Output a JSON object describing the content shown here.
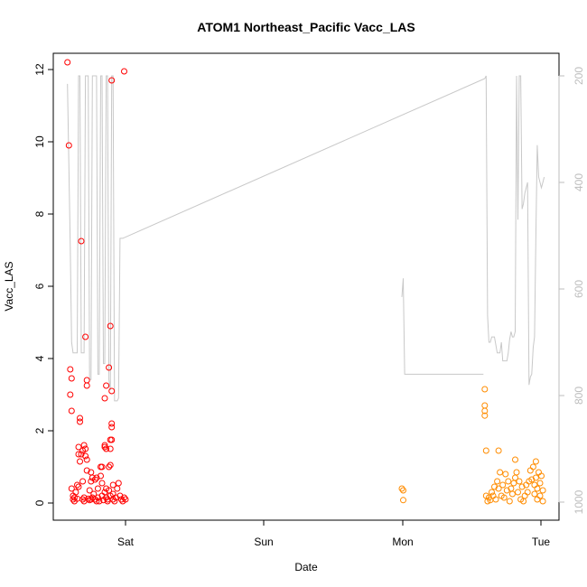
{
  "chart_data": {
    "type": "scatter",
    "title": "ATOM1 Northeast_Pacific Vacc_LAS",
    "xlabel": "Date",
    "ylabel": "Vacc_LAS",
    "x_ticks": [
      "Sat",
      "Sun",
      "Mon",
      "Tue"
    ],
    "y_ticks": [
      "0",
      "2",
      "4",
      "6",
      "8",
      "10",
      "12"
    ],
    "y_right_ticks": [
      "200",
      "400",
      "600",
      "800",
      "1000"
    ],
    "ylim": [
      0,
      12.3
    ],
    "y_right_lim": [
      1000,
      200
    ],
    "y_right_reversed": true,
    "grid": false,
    "colors": {
      "series1": "#ff0000",
      "series2": "#ff8c00",
      "secondary_line": "#c8c8c8"
    },
    "series": [
      {
        "points": [
          [
            -0.42,
            12.2
          ],
          [
            -0.41,
            9.9
          ],
          [
            -0.4,
            3.7
          ],
          [
            -0.4,
            3.0
          ],
          [
            -0.39,
            3.45
          ],
          [
            -0.39,
            2.55
          ],
          [
            -0.39,
            0.4
          ],
          [
            -0.38,
            0.2
          ],
          [
            -0.38,
            0.1
          ],
          [
            -0.37,
            0.15
          ],
          [
            -0.37,
            0.05
          ],
          [
            -0.36,
            0.3
          ],
          [
            -0.35,
            0.12
          ],
          [
            -0.35,
            0.5
          ],
          [
            -0.34,
            1.35
          ],
          [
            -0.34,
            1.55
          ],
          [
            -0.34,
            0.45
          ],
          [
            -0.33,
            2.35
          ],
          [
            -0.33,
            1.15
          ],
          [
            -0.33,
            2.25
          ],
          [
            -0.32,
            7.25
          ],
          [
            -0.32,
            1.35
          ],
          [
            -0.31,
            1.45
          ],
          [
            -0.31,
            0.6
          ],
          [
            -0.31,
            0.1
          ],
          [
            -0.3,
            0.15
          ],
          [
            -0.3,
            0.05
          ],
          [
            -0.3,
            1.6
          ],
          [
            -0.29,
            4.6
          ],
          [
            -0.29,
            1.5
          ],
          [
            -0.29,
            1.3
          ],
          [
            -0.28,
            1.2
          ],
          [
            -0.28,
            3.4
          ],
          [
            -0.28,
            3.25
          ],
          [
            -0.28,
            0.9
          ],
          [
            -0.27,
            0.12
          ],
          [
            -0.26,
            0.08
          ],
          [
            -0.26,
            0.35
          ],
          [
            -0.25,
            0.85
          ],
          [
            -0.25,
            0.1
          ],
          [
            -0.25,
            0.6
          ],
          [
            -0.24,
            0.7
          ],
          [
            -0.24,
            0.15
          ],
          [
            -0.23,
            0.25
          ],
          [
            -0.22,
            0.65
          ],
          [
            -0.22,
            0.1
          ],
          [
            -0.21,
            0.7
          ],
          [
            -0.21,
            0.05
          ],
          [
            -0.2,
            0.4
          ],
          [
            -0.2,
            0.15
          ],
          [
            -0.19,
            0.05
          ],
          [
            -0.18,
            1.0
          ],
          [
            -0.18,
            0.75
          ],
          [
            -0.17,
            0.55
          ],
          [
            -0.17,
            1.0
          ],
          [
            -0.17,
            0.2
          ],
          [
            -0.16,
            0.08
          ],
          [
            -0.15,
            2.9
          ],
          [
            -0.15,
            1.55
          ],
          [
            -0.15,
            1.6
          ],
          [
            -0.15,
            0.3
          ],
          [
            -0.14,
            1.5
          ],
          [
            -0.14,
            3.25
          ],
          [
            -0.14,
            0.4
          ],
          [
            -0.14,
            0.15
          ],
          [
            -0.13,
            0.1
          ],
          [
            -0.13,
            0.05
          ],
          [
            -0.12,
            1.0
          ],
          [
            -0.12,
            0.35
          ],
          [
            -0.12,
            3.75
          ],
          [
            -0.11,
            4.9
          ],
          [
            -0.11,
            1.75
          ],
          [
            -0.11,
            1.5
          ],
          [
            -0.11,
            1.05
          ],
          [
            -0.11,
            0.2
          ],
          [
            -0.1,
            11.7
          ],
          [
            -0.1,
            2.2
          ],
          [
            -0.1,
            2.1
          ],
          [
            -0.1,
            1.75
          ],
          [
            -0.1,
            3.1
          ],
          [
            -0.09,
            0.5
          ],
          [
            -0.09,
            0.25
          ],
          [
            -0.09,
            0.1
          ],
          [
            -0.08,
            0.05
          ],
          [
            -0.07,
            0.15
          ],
          [
            -0.06,
            0.4
          ],
          [
            -0.05,
            0.55
          ],
          [
            -0.04,
            0.2
          ],
          [
            -0.03,
            0.1
          ],
          [
            -0.02,
            0.05
          ],
          [
            -0.01,
            11.95
          ],
          [
            -0.01,
            0.15
          ],
          [
            0.0,
            0.1
          ]
        ]
      },
      {
        "points": [
          [
            2.0,
            0.4
          ],
          [
            2.01,
            0.35
          ],
          [
            2.01,
            0.08
          ],
          [
            2.6,
            3.15
          ],
          [
            2.6,
            2.7
          ],
          [
            2.6,
            2.55
          ],
          [
            2.6,
            2.42
          ],
          [
            2.61,
            1.45
          ],
          [
            2.61,
            0.2
          ],
          [
            2.62,
            0.05
          ],
          [
            2.63,
            0.15
          ],
          [
            2.64,
            0.08
          ],
          [
            2.65,
            0.3
          ],
          [
            2.66,
            0.2
          ],
          [
            2.67,
            0.45
          ],
          [
            2.68,
            0.1
          ],
          [
            2.69,
            0.6
          ],
          [
            2.7,
            1.45
          ],
          [
            2.7,
            0.4
          ],
          [
            2.71,
            0.85
          ],
          [
            2.72,
            0.2
          ],
          [
            2.73,
            0.5
          ],
          [
            2.74,
            0.15
          ],
          [
            2.75,
            0.8
          ],
          [
            2.76,
            0.35
          ],
          [
            2.77,
            0.6
          ],
          [
            2.78,
            0.05
          ],
          [
            2.79,
            0.4
          ],
          [
            2.8,
            0.25
          ],
          [
            2.81,
            0.55
          ],
          [
            2.82,
            0.7
          ],
          [
            2.82,
            1.2
          ],
          [
            2.83,
            0.85
          ],
          [
            2.84,
            0.3
          ],
          [
            2.85,
            0.6
          ],
          [
            2.86,
            0.1
          ],
          [
            2.87,
            0.45
          ],
          [
            2.88,
            0.05
          ],
          [
            2.89,
            0.2
          ],
          [
            2.9,
            0.5
          ],
          [
            2.91,
            0.3
          ],
          [
            2.92,
            0.6
          ],
          [
            2.93,
            0.9
          ],
          [
            2.94,
            0.65
          ],
          [
            2.95,
            1.0
          ],
          [
            2.96,
            0.5
          ],
          [
            2.96,
            0.25
          ],
          [
            2.97,
            1.15
          ],
          [
            2.97,
            0.7
          ],
          [
            2.98,
            0.4
          ],
          [
            2.98,
            0.1
          ],
          [
            2.99,
            0.85
          ],
          [
            3.0,
            0.55
          ],
          [
            3.0,
            0.2
          ],
          [
            3.01,
            0.75
          ],
          [
            3.02,
            0.35
          ],
          [
            3.02,
            0.05
          ]
        ]
      }
    ],
    "secondary_line": [
      [
        -0.42,
        215
      ],
      [
        -0.4,
        520
      ],
      [
        -0.39,
        700
      ],
      [
        -0.38,
        720
      ],
      [
        -0.35,
        720
      ],
      [
        -0.34,
        200
      ],
      [
        -0.33,
        200
      ],
      [
        -0.32,
        720
      ],
      [
        -0.31,
        720
      ],
      [
        -0.3,
        720
      ],
      [
        -0.29,
        200
      ],
      [
        -0.28,
        200
      ],
      [
        -0.27,
        200
      ],
      [
        -0.26,
        770
      ],
      [
        -0.25,
        770
      ],
      [
        -0.24,
        200
      ],
      [
        -0.23,
        200
      ],
      [
        -0.22,
        200
      ],
      [
        -0.21,
        200
      ],
      [
        -0.2,
        760
      ],
      [
        -0.19,
        760
      ],
      [
        -0.18,
        200
      ],
      [
        -0.17,
        200
      ],
      [
        -0.16,
        740
      ],
      [
        -0.15,
        740
      ],
      [
        -0.14,
        200
      ],
      [
        -0.13,
        200
      ],
      [
        -0.12,
        770
      ],
      [
        -0.11,
        790
      ],
      [
        -0.1,
        200
      ],
      [
        -0.09,
        200
      ],
      [
        -0.08,
        810
      ],
      [
        -0.06,
        810
      ],
      [
        -0.05,
        805
      ],
      [
        -0.04,
        505
      ],
      [
        -0.02,
        505
      ],
      [
        2.6,
        205
      ],
      [
        2.61,
        200
      ],
      [
        2.62,
        650
      ],
      [
        2.63,
        700
      ],
      [
        2.64,
        700
      ],
      [
        2.65,
        690
      ],
      [
        2.67,
        690
      ],
      [
        2.69,
        720
      ],
      [
        2.71,
        720
      ],
      [
        2.72,
        700
      ],
      [
        2.73,
        735
      ],
      [
        2.74,
        735
      ],
      [
        2.76,
        735
      ],
      [
        2.77,
        720
      ],
      [
        2.78,
        695
      ],
      [
        2.79,
        680
      ],
      [
        2.8,
        690
      ],
      [
        2.81,
        690
      ],
      [
        2.82,
        680
      ],
      [
        2.83,
        200
      ],
      [
        2.84,
        470
      ],
      [
        2.85,
        200
      ],
      [
        2.86,
        200
      ],
      [
        2.87,
        450
      ],
      [
        2.88,
        440
      ],
      [
        2.89,
        420
      ],
      [
        2.9,
        410
      ],
      [
        2.91,
        400
      ],
      [
        2.92,
        780
      ],
      [
        2.93,
        765
      ],
      [
        2.94,
        760
      ],
      [
        2.95,
        710
      ],
      [
        2.96,
        690
      ],
      [
        2.97,
        500
      ],
      [
        2.98,
        330
      ],
      [
        2.99,
        390
      ],
      [
        3.0,
        400
      ],
      [
        3.01,
        410
      ],
      [
        3.02,
        400
      ],
      [
        3.03,
        390
      ]
    ],
    "secondary_line_early": [
      [
        2.0,
        615
      ],
      [
        2.01,
        580
      ],
      [
        2.02,
        760
      ],
      [
        2.59,
        760
      ]
    ]
  }
}
